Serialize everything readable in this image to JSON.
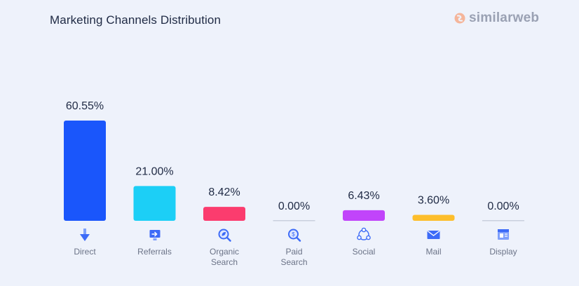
{
  "header": {
    "title": "Marketing Channels Distribution",
    "brand": "similarweb"
  },
  "colors": {
    "background": "#eef2fb",
    "baseline": "#c9d0de"
  },
  "chart_data": {
    "type": "bar",
    "title": "Marketing Channels Distribution",
    "categories": [
      "Direct",
      "Referrals",
      "Organic Search",
      "Paid Search",
      "Social",
      "Mail",
      "Display"
    ],
    "category_lines": [
      [
        "Direct"
      ],
      [
        "Referrals"
      ],
      [
        "Organic",
        "Search"
      ],
      [
        "Paid",
        "Search"
      ],
      [
        "Social"
      ],
      [
        "Mail"
      ],
      [
        "Display"
      ]
    ],
    "values": [
      60.55,
      21.0,
      8.42,
      0.0,
      6.43,
      3.6,
      0.0
    ],
    "value_labels": [
      "60.55%",
      "21.00%",
      "8.42%",
      "0.00%",
      "6.43%",
      "3.60%",
      "0.00%"
    ],
    "unit": "%",
    "bar_colors": [
      "#1a56fb",
      "#1ccff6",
      "#fb3c6e",
      "#c9d0de",
      "#c144fa",
      "#fdbe2c",
      "#c9d0de"
    ],
    "icons": [
      "direct-icon",
      "referrals-icon",
      "organic-search-icon",
      "paid-search-icon",
      "social-icon",
      "mail-icon",
      "display-icon"
    ],
    "xlabel": "",
    "ylabel": "",
    "ylim": [
      0,
      60.55
    ],
    "grid": false,
    "legend": "none"
  }
}
